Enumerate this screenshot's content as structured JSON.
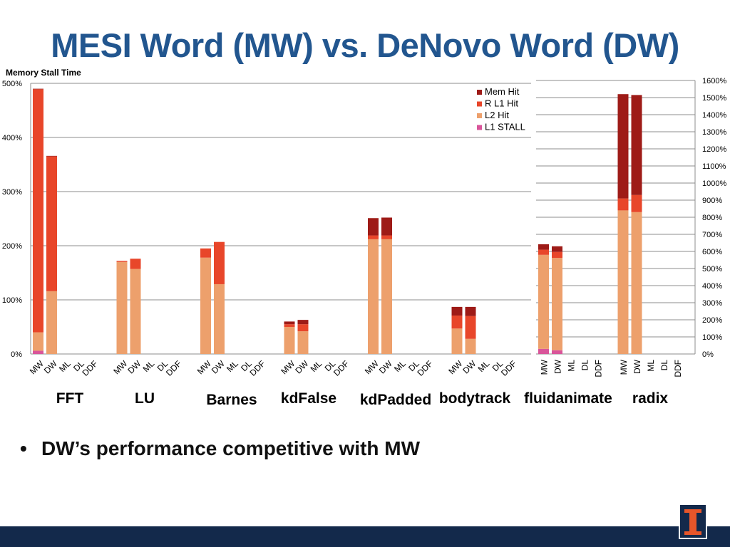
{
  "title": "MESI Word (MW) vs. DeNovo Word (DW)",
  "bullet": "DW’s performance competitive with MW",
  "bullet_marker": "•",
  "chart_data": {
    "type": "bar",
    "stacked": true,
    "title": "Memory Stall Time",
    "legend": {
      "position": "top-right",
      "entries": [
        {
          "name": "Mem Hit",
          "color": "#9e1b17"
        },
        {
          "name": "R L1 Hit",
          "color": "#e8462a"
        },
        {
          "name": "L2 Hit",
          "color": "#eda06c"
        },
        {
          "name": "L1 STALL",
          "color": "#d9559a"
        }
      ]
    },
    "series_order": [
      "L1 STALL",
      "L2 Hit",
      "R L1 Hit",
      "Mem Hit"
    ],
    "colors": {
      "L1 STALL": "#d9559a",
      "L2 Hit": "#eda06c",
      "R L1 Hit": "#e8462a",
      "Mem Hit": "#9e1b17"
    },
    "bar_labels": [
      "MW",
      "DW",
      "ML",
      "DL",
      "DDF"
    ],
    "left_axis": {
      "ylim": [
        0,
        500
      ],
      "ticks": [
        "0%",
        "100%",
        "200%",
        "300%",
        "400%",
        "500%"
      ]
    },
    "right_axis": {
      "ylim": [
        0,
        1600
      ],
      "ticks": [
        "0%",
        "100%",
        "200%",
        "300%",
        "400%",
        "500%",
        "600%",
        "700%",
        "800%",
        "900%",
        "1000%",
        "1100%",
        "1200%",
        "1300%",
        "1400%",
        "1500%",
        "1600%"
      ]
    },
    "groups": [
      {
        "name": "FFT",
        "axis": "left",
        "bars": [
          {
            "label": "MW",
            "L1 STALL": 6,
            "L2 Hit": 34,
            "R L1 Hit": 449,
            "Mem Hit": 1
          },
          {
            "label": "DW",
            "L1 STALL": 0,
            "L2 Hit": 116,
            "R L1 Hit": 249,
            "Mem Hit": 1
          },
          {
            "label": "ML"
          },
          {
            "label": "DL"
          },
          {
            "label": "DDF"
          }
        ]
      },
      {
        "name": "LU",
        "axis": "left",
        "bars": [
          {
            "label": "MW",
            "L1 STALL": 0,
            "L2 Hit": 170,
            "R L1 Hit": 2,
            "Mem Hit": 0
          },
          {
            "label": "DW",
            "L1 STALL": 0,
            "L2 Hit": 157,
            "R L1 Hit": 19,
            "Mem Hit": 0
          },
          {
            "label": "ML"
          },
          {
            "label": "DL"
          },
          {
            "label": "DDF"
          }
        ]
      },
      {
        "name": "Barnes",
        "axis": "left",
        "bars": [
          {
            "label": "MW",
            "L1 STALL": 0,
            "L2 Hit": 178,
            "R L1 Hit": 17,
            "Mem Hit": 0
          },
          {
            "label": "DW",
            "L1 STALL": 0,
            "L2 Hit": 129,
            "R L1 Hit": 78,
            "Mem Hit": 0
          },
          {
            "label": "ML"
          },
          {
            "label": "DL"
          },
          {
            "label": "DDF"
          }
        ]
      },
      {
        "name": "kdFalse",
        "axis": "left",
        "bars": [
          {
            "label": "MW",
            "L1 STALL": 0,
            "L2 Hit": 50,
            "R L1 Hit": 5,
            "Mem Hit": 5
          },
          {
            "label": "DW",
            "L1 STALL": 0,
            "L2 Hit": 42,
            "R L1 Hit": 13,
            "Mem Hit": 8
          },
          {
            "label": "ML"
          },
          {
            "label": "DL"
          },
          {
            "label": "DDF"
          }
        ]
      },
      {
        "name": "kdPadded",
        "axis": "left",
        "bars": [
          {
            "label": "MW",
            "L1 STALL": 0,
            "L2 Hit": 212,
            "R L1 Hit": 7,
            "Mem Hit": 32
          },
          {
            "label": "DW",
            "L1 STALL": 0,
            "L2 Hit": 212,
            "R L1 Hit": 7,
            "Mem Hit": 33
          },
          {
            "label": "ML"
          },
          {
            "label": "DL"
          },
          {
            "label": "DDF"
          }
        ]
      },
      {
        "name": "bodytrack",
        "axis": "left",
        "bars": [
          {
            "label": "MW",
            "L1 STALL": 0,
            "L2 Hit": 47,
            "R L1 Hit": 24,
            "Mem Hit": 16
          },
          {
            "label": "DW",
            "L1 STALL": 0,
            "L2 Hit": 28,
            "R L1 Hit": 42,
            "Mem Hit": 17
          },
          {
            "label": "ML"
          },
          {
            "label": "DL"
          },
          {
            "label": "DDF"
          }
        ]
      },
      {
        "name": "fluidanimate",
        "axis": "right",
        "bars": [
          {
            "label": "MW",
            "L1 STALL": 30,
            "L2 Hit": 550,
            "R L1 Hit": 30,
            "Mem Hit": 32
          },
          {
            "label": "DW",
            "L1 STALL": 22,
            "L2 Hit": 540,
            "R L1 Hit": 35,
            "Mem Hit": 33
          },
          {
            "label": "ML"
          },
          {
            "label": "DL"
          },
          {
            "label": "DDF"
          }
        ]
      },
      {
        "name": "radix",
        "axis": "right",
        "bars": [
          {
            "label": "MW",
            "L1 STALL": 0,
            "L2 Hit": 840,
            "R L1 Hit": 70,
            "Mem Hit": 610
          },
          {
            "label": "DW",
            "L1 STALL": 0,
            "L2 Hit": 830,
            "R L1 Hit": 100,
            "Mem Hit": 585
          },
          {
            "label": "ML"
          },
          {
            "label": "DL"
          },
          {
            "label": "DDF"
          }
        ]
      }
    ]
  }
}
